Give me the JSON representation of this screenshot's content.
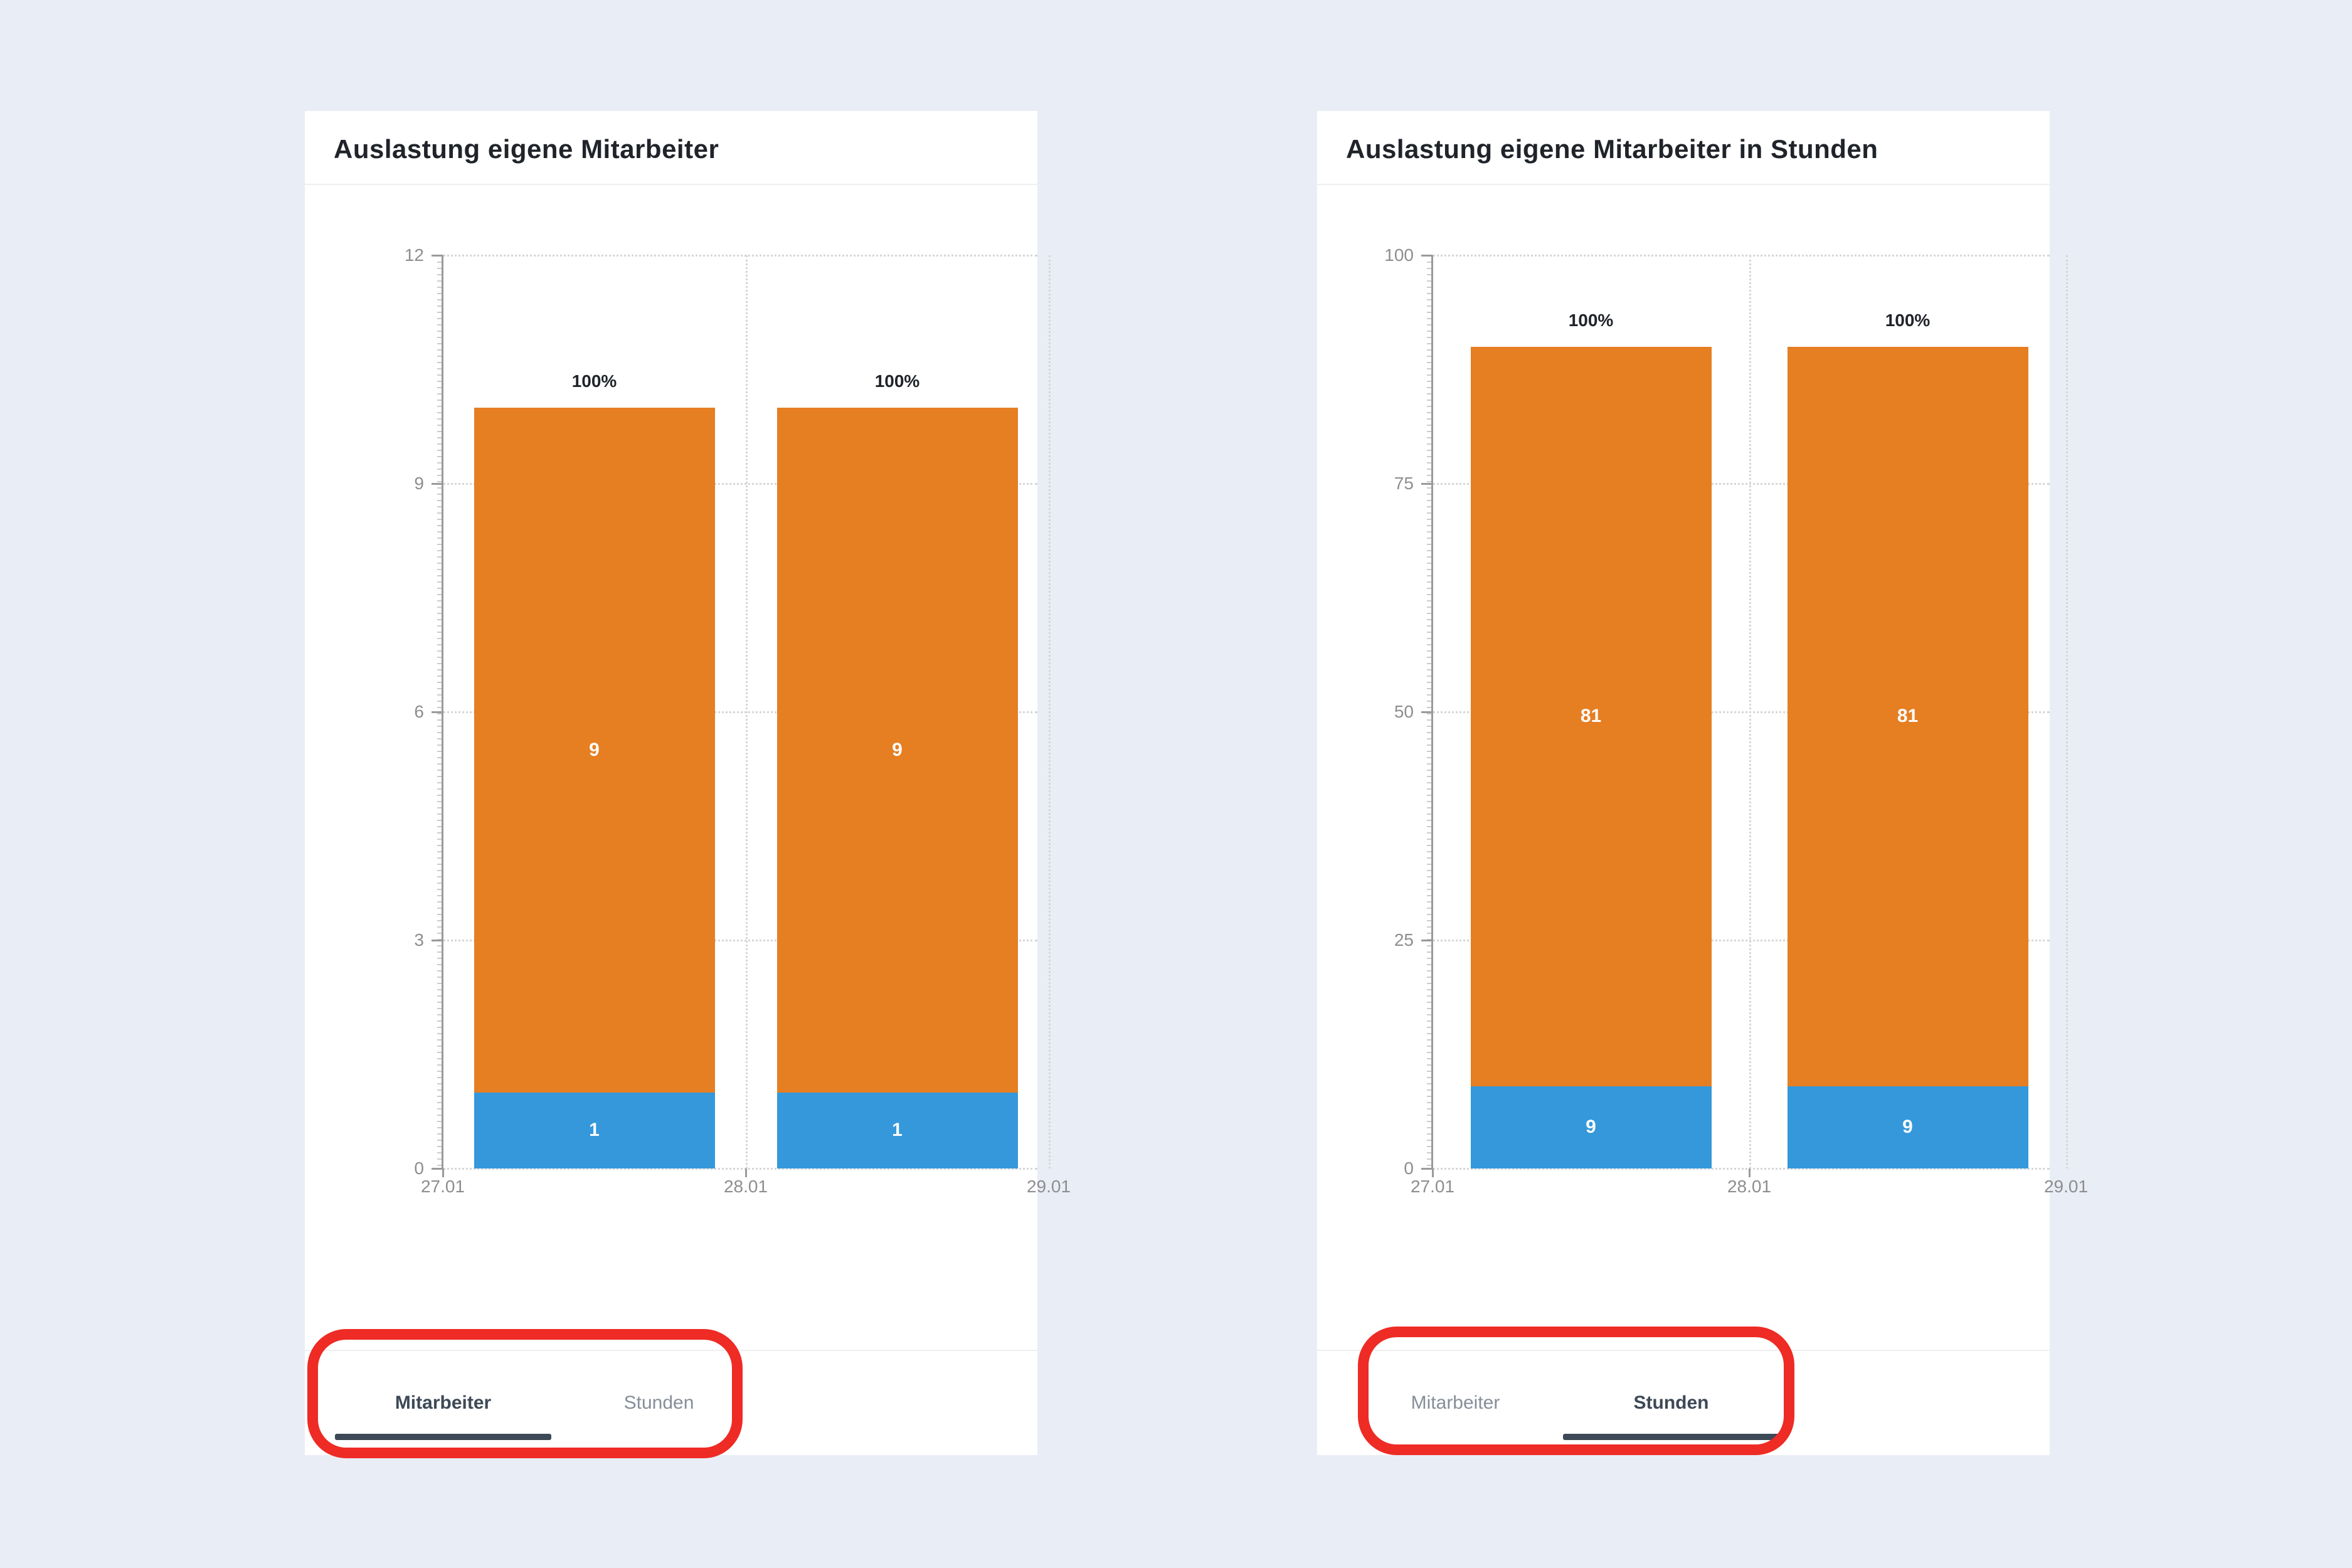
{
  "theme": {
    "page_bg": "#E9EDF6",
    "panel_bg": "#FFFFFF",
    "annotation_red": "#EE2B24",
    "tab_active": "#3D4956",
    "tab_inactive": "#878E98",
    "axis_text": "#8E8E8E",
    "grid_dot": "#D6D6D6",
    "axis_line": "#9A9A9A",
    "title_text": "#20242A",
    "divider": "#EFEFF1",
    "bar_orange": "#E67E22",
    "bar_blue": "#3498DB",
    "label_on_bar": "#FFFFFF",
    "total_label": "#20242A"
  },
  "panels": [
    {
      "title": "Auslastung eigene Mitarbeiter",
      "tabs": [
        {
          "label": "Mitarbeiter",
          "active": true
        },
        {
          "label": "Stunden",
          "active": false
        }
      ]
    },
    {
      "title": "Auslastung eigene Mitarbeiter in Stunden",
      "tabs": [
        {
          "label": "Mitarbeiter",
          "active": false
        },
        {
          "label": "Stunden",
          "active": true
        }
      ]
    }
  ],
  "chart_data": [
    {
      "type": "bar",
      "stacked": true,
      "title": "Auslastung eigene Mitarbeiter",
      "categories": [
        "27.01",
        "28.01"
      ],
      "series": [
        {
          "name": "blue-segment",
          "color": "#3498DB",
          "values": [
            1,
            1
          ]
        },
        {
          "name": "orange-segment",
          "color": "#E67E22",
          "values": [
            9,
            9
          ]
        }
      ],
      "stack_totals": [
        10,
        10
      ],
      "total_labels": [
        "100%",
        "100%"
      ],
      "ylim": [
        0,
        12
      ],
      "yticks": [
        0,
        3,
        6,
        9,
        12
      ],
      "xtick_labels": [
        "27.01",
        "28.01",
        "29.01"
      ],
      "xlabel": "",
      "ylabel": "",
      "grid": "dotted",
      "legend": "none"
    },
    {
      "type": "bar",
      "stacked": true,
      "title": "Auslastung eigene Mitarbeiter in Stunden",
      "categories": [
        "27.01",
        "28.01"
      ],
      "series": [
        {
          "name": "blue-segment",
          "color": "#3498DB",
          "values": [
            9,
            9
          ]
        },
        {
          "name": "orange-segment",
          "color": "#E67E22",
          "values": [
            81,
            81
          ]
        }
      ],
      "stack_totals": [
        90,
        90
      ],
      "total_labels": [
        "100%",
        "100%"
      ],
      "ylim": [
        0,
        100
      ],
      "yticks": [
        0,
        25,
        50,
        75,
        100
      ],
      "xtick_labels": [
        "27.01",
        "28.01",
        "29.01"
      ],
      "xlabel": "",
      "ylabel": "",
      "grid": "dotted",
      "legend": "none"
    }
  ]
}
